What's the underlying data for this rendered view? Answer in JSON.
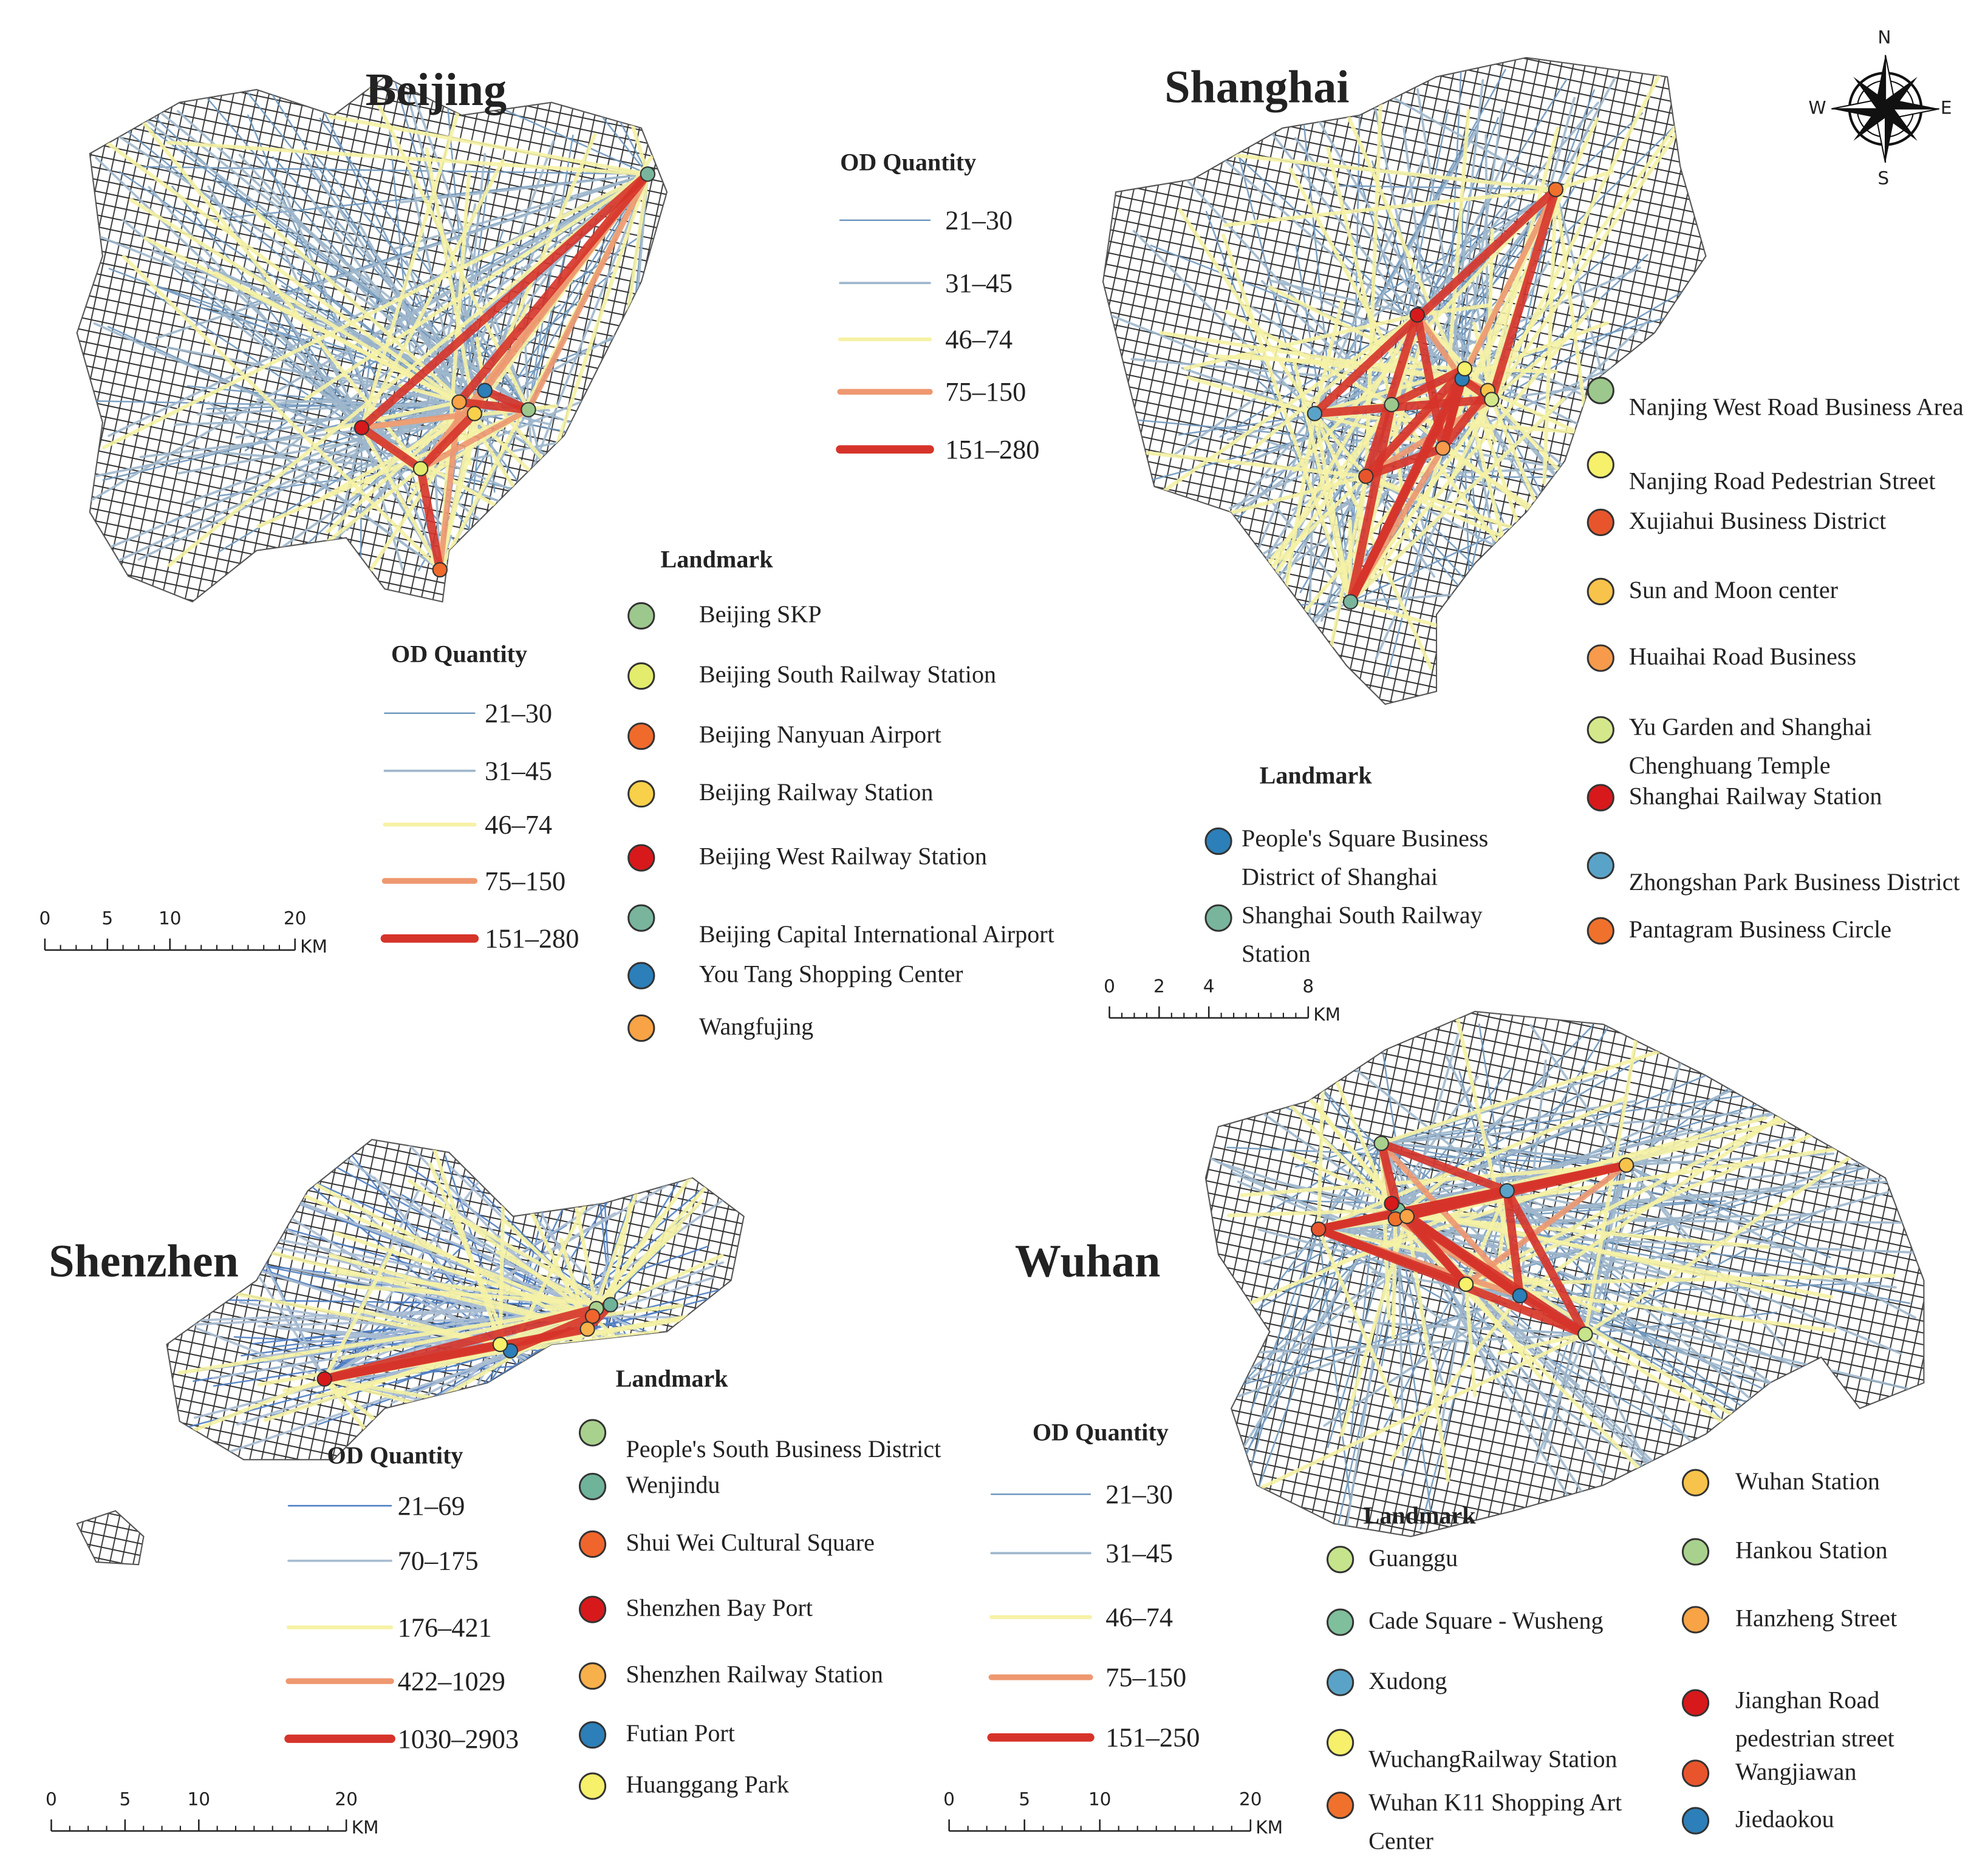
{
  "compass": {
    "n": "N",
    "s": "S",
    "e": "E",
    "w": "W"
  },
  "panels": [
    {
      "title": "Beijing",
      "od_legend": {
        "title": "OD Quantity",
        "items": [
          {
            "label": "21–30",
            "color": "#6f97bd"
          },
          {
            "label": "31–45",
            "color": "#9fb7cc"
          },
          {
            "label": "46–74",
            "color": "#f6f2a6"
          },
          {
            "label": "75–150",
            "color": "#ee9870"
          },
          {
            "label": "151–280",
            "color": "#d6342a"
          }
        ]
      },
      "landmark_title": "Landmark",
      "landmarks": [
        {
          "name": "Beijing SKP",
          "color": "#9dc88d"
        },
        {
          "name": "Beijing South Railway Station",
          "color": "#e3ec6c"
        },
        {
          "name": "Beijing Nanyuan Airport",
          "color": "#f06a2c"
        },
        {
          "name": "Beijing Railway Station",
          "color": "#f8d04a"
        },
        {
          "name": "Beijing West Railway Station",
          "color": "#d7191c"
        },
        {
          "name": "Beijing Capital International Airport",
          "color": "#79b59c"
        },
        {
          "name": "You Tang Shopping Center",
          "color": "#2c7fb8"
        },
        {
          "name": "Wangfujing",
          "color": "#f8a345"
        }
      ],
      "scale": {
        "ticks": [
          0,
          5,
          10,
          20
        ],
        "unit": "KM"
      }
    },
    {
      "title": "Shanghai",
      "od_legend": {
        "title": "OD Quantity",
        "items": [
          {
            "label": "21–30",
            "color": "#6f97bd"
          },
          {
            "label": "31–45",
            "color": "#9fb7cc"
          },
          {
            "label": "46–74",
            "color": "#f6f2a6"
          },
          {
            "label": "75–150",
            "color": "#ee9870"
          },
          {
            "label": "151–280",
            "color": "#d6342a"
          }
        ]
      },
      "landmark_title": "Landmark",
      "landmarks": [
        {
          "name": "People's Square Business District of Shanghai",
          "color": "#2c7fb8"
        },
        {
          "name": "Shanghai South Railway Station",
          "color": "#79b59c"
        }
      ],
      "landmarks_extra": [
        {
          "name": "Nanjing West Road Business Area",
          "color": "#9dc88d"
        },
        {
          "name": "Nanjing Road Pedestrian Street",
          "color": "#f6f06a"
        },
        {
          "name": "Xujiahui Business District",
          "color": "#e8552c"
        },
        {
          "name": "Sun and Moon center",
          "color": "#f8c34a"
        },
        {
          "name": "Huaihai Road Business",
          "color": "#f79a4c"
        },
        {
          "name": "Yu Garden and Shanghai Chenghuang Temple",
          "color": "#d4e88b"
        },
        {
          "name": "Shanghai Railway Station",
          "color": "#d7191c"
        },
        {
          "name": "Zhongshan Park Business District",
          "color": "#5aa3c8"
        },
        {
          "name": "Pantagram Business Circle",
          "color": "#f0712c"
        }
      ],
      "scale": {
        "ticks": [
          0,
          2,
          4,
          8
        ],
        "unit": "KM"
      }
    },
    {
      "title": "Shenzhen",
      "od_legend": {
        "title": "OD Quantity",
        "items": [
          {
            "label": "21–69",
            "color": "#4f7fc4"
          },
          {
            "label": "70–175",
            "color": "#a9bdd3"
          },
          {
            "label": "176–421",
            "color": "#f6f2a6"
          },
          {
            "label": "422–1029",
            "color": "#ee9870"
          },
          {
            "label": "1030–2903",
            "color": "#d6342a"
          }
        ]
      },
      "landmark_title": "Landmark",
      "landmarks": [
        {
          "name": "People's South Business District",
          "color": "#a9d18e"
        },
        {
          "name": "Wenjindu",
          "color": "#6fb39a"
        },
        {
          "name": "Shui Wei Cultural Square",
          "color": "#f0652c"
        },
        {
          "name": "Shenzhen Bay Port",
          "color": "#d7191c"
        },
        {
          "name": "Shenzhen Railway Station",
          "color": "#f8b04a"
        },
        {
          "name": "Futian Port",
          "color": "#2c7fb8"
        },
        {
          "name": "Huanggang Park",
          "color": "#f6f06a"
        }
      ],
      "scale": {
        "ticks": [
          0,
          5,
          10,
          20
        ],
        "unit": "KM"
      }
    },
    {
      "title": "Wuhan",
      "od_legend": {
        "title": "OD Quantity",
        "items": [
          {
            "label": "21–30",
            "color": "#6f97bd"
          },
          {
            "label": "31–45",
            "color": "#9fb7cc"
          },
          {
            "label": "46–74",
            "color": "#f6f2a6"
          },
          {
            "label": "75–150",
            "color": "#ee9870"
          },
          {
            "label": "151–250",
            "color": "#d6342a"
          }
        ]
      },
      "landmark_title": "Landmark",
      "landmarks": [
        {
          "name": "Guanggu",
          "color": "#c6e48b"
        },
        {
          "name": "Cade Square - Wusheng",
          "color": "#7fbf9b"
        },
        {
          "name": "Xudong",
          "color": "#5aa3c8"
        },
        {
          "name": "WuchangRailway Station",
          "color": "#f6f06a"
        },
        {
          "name": "Wuhan K11 Shopping Art Center",
          "color": "#f0712c"
        }
      ],
      "landmarks_extra": [
        {
          "name": "Wuhan Station",
          "color": "#f8c34a"
        },
        {
          "name": "Hankou Station",
          "color": "#a9d18e"
        },
        {
          "name": "Hanzheng Street",
          "color": "#f8a345"
        },
        {
          "name": "Jianghan Road pedestrian street",
          "color": "#d7191c"
        },
        {
          "name": "Wangjiawan",
          "color": "#e8552c"
        },
        {
          "name": "Jiedaokou",
          "color": "#2c7fb8"
        }
      ],
      "scale": {
        "ticks": [
          0,
          5,
          10,
          20
        ],
        "unit": "KM"
      }
    }
  ]
}
